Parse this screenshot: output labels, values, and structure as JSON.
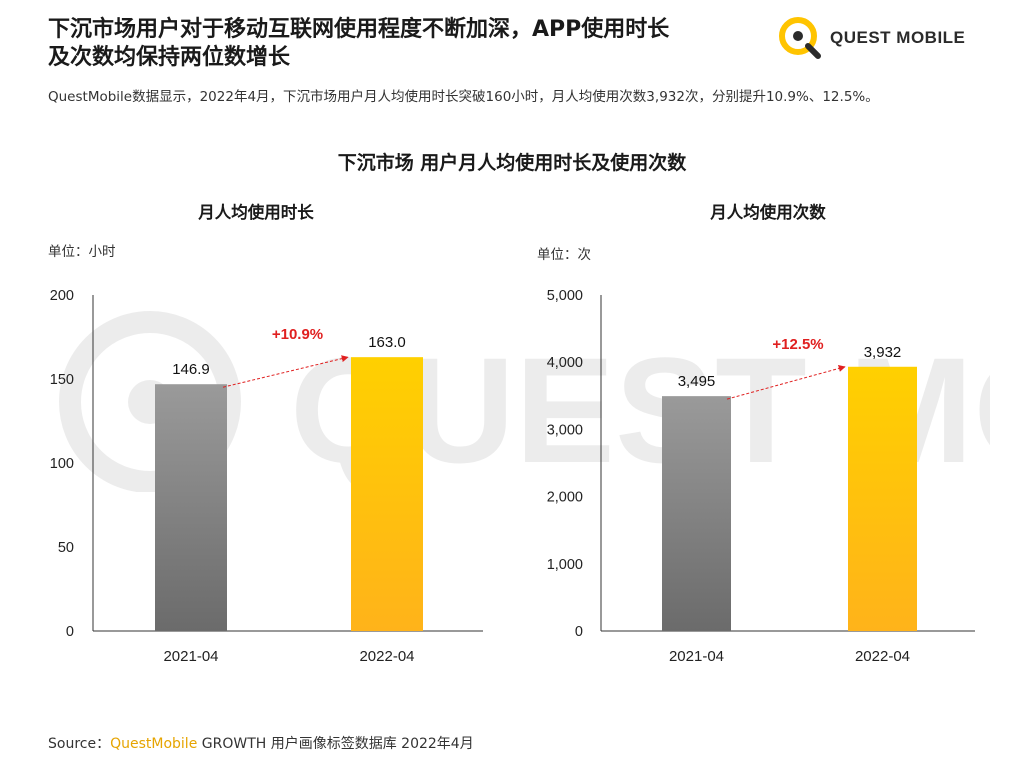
{
  "header": {
    "title_line1": "下沉市场用户对于移动互联网使用程度不断加深，APP使用时长",
    "title_line2": "及次数均保持两位数增长",
    "subtitle": "QuestMobile数据显示，2022年4月，下沉市场用户月人均使用时长突破160小时，月人均使用次数3,932次，分别提升10.9%、12.5%。"
  },
  "logo": {
    "text": "QUEST MOBILE"
  },
  "watermark": {
    "text": "QUEST MOBILE"
  },
  "chart_title": "下沉市场 用户月人均使用时长及使用次数",
  "source": {
    "prefix": "Source：",
    "brand": "QuestMobile",
    "rest": " GROWTH 用户画像标签数据库 2022年4月"
  },
  "colors": {
    "gray_top": "#9a9a9a",
    "gray_bottom": "#6b6b6b",
    "gold_top": "#ffd000",
    "gold_bottom": "#ffb31a",
    "growth": "#e02020",
    "brand": "#e6a400"
  },
  "chart_data": [
    {
      "type": "bar",
      "title": "月人均使用时长",
      "unit": "单位：小时",
      "categories": [
        "2021-04",
        "2022-04"
      ],
      "values": [
        146.9,
        163.0
      ],
      "value_labels": [
        "146.9",
        "163.0"
      ],
      "ylim": [
        0,
        200
      ],
      "yticks": [
        0,
        50,
        100,
        150,
        200
      ],
      "ytick_labels": [
        "0",
        "50",
        "100",
        "150",
        "200"
      ],
      "growth_label": "+10.9%",
      "bar_colors": [
        "gray",
        "gold"
      ]
    },
    {
      "type": "bar",
      "title": "月人均使用次数",
      "unit": "单位：次",
      "categories": [
        "2021-04",
        "2022-04"
      ],
      "values": [
        3495,
        3932
      ],
      "value_labels": [
        "3,495",
        "3,932"
      ],
      "ylim": [
        0,
        5000
      ],
      "yticks": [
        0,
        1000,
        2000,
        3000,
        4000,
        5000
      ],
      "ytick_labels": [
        "0",
        "1,000",
        "2,000",
        "3,000",
        "4,000",
        "5,000"
      ],
      "growth_label": "+12.5%",
      "bar_colors": [
        "gray",
        "gold"
      ]
    }
  ]
}
